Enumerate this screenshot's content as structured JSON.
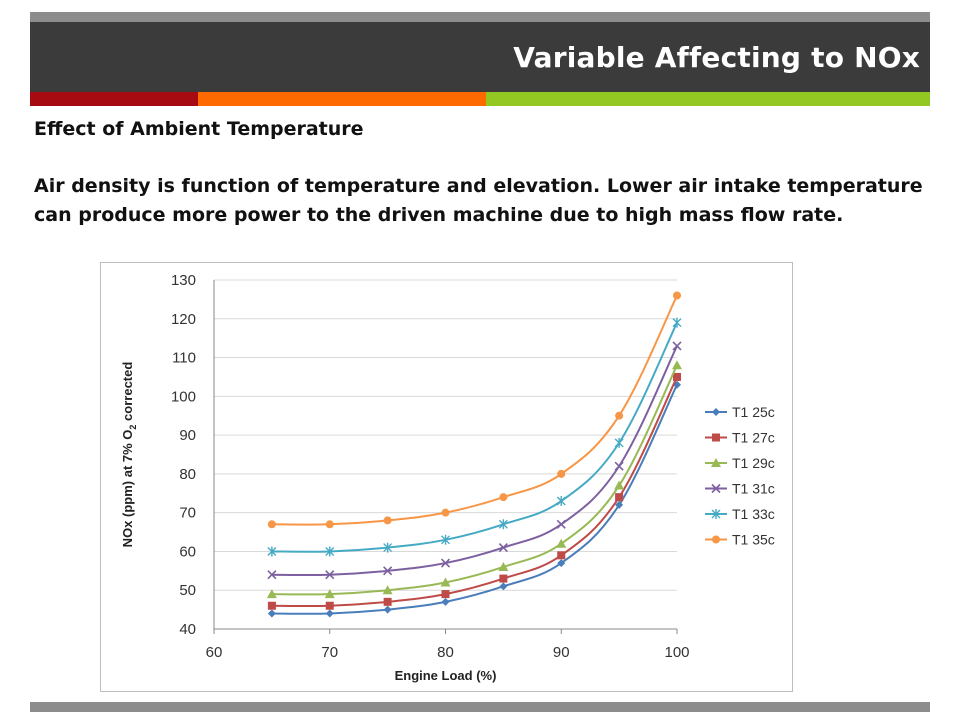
{
  "header": {
    "title": "Variable Affecting to NOx",
    "accent_colors": [
      "#a50b10",
      "#ff6a00",
      "#92c821"
    ]
  },
  "content": {
    "subtitle": "Effect of Ambient Temperature",
    "paragraph": "Air density is function of temperature and elevation. Lower air intake temperature can produce more power to the driven machine due to high mass flow rate."
  },
  "chart_data": {
    "type": "line",
    "xlabel": "Engine Load (%)",
    "ylabel": "NOx (ppm) at 7% O2 corrected",
    "xlim": [
      60,
      100
    ],
    "ylim": [
      40,
      130
    ],
    "xticks": [
      60,
      70,
      80,
      90,
      100
    ],
    "yticks": [
      40,
      50,
      60,
      70,
      80,
      90,
      100,
      110,
      120,
      130
    ],
    "grid": "horizontal",
    "legend_position": "right",
    "x": [
      65,
      70,
      75,
      80,
      85,
      90,
      95,
      100
    ],
    "series": [
      {
        "name": "T1 25c",
        "color": "#4a7ebb",
        "marker": "diamond",
        "values": [
          44,
          44,
          45,
          47,
          51,
          57,
          72,
          103
        ]
      },
      {
        "name": "T1 27c",
        "color": "#be4b48",
        "marker": "square",
        "values": [
          46,
          46,
          47,
          49,
          53,
          59,
          74,
          105
        ]
      },
      {
        "name": "T1 29c",
        "color": "#98b954",
        "marker": "triangle",
        "values": [
          49,
          49,
          50,
          52,
          56,
          62,
          77,
          108
        ]
      },
      {
        "name": "T1 31c",
        "color": "#7d60a0",
        "marker": "x",
        "values": [
          54,
          54,
          55,
          57,
          61,
          67,
          82,
          113
        ]
      },
      {
        "name": "T1 33c",
        "color": "#46aac5",
        "marker": "star",
        "values": [
          60,
          60,
          61,
          63,
          67,
          73,
          88,
          119
        ]
      },
      {
        "name": "T1 35c",
        "color": "#f79646",
        "marker": "circle",
        "values": [
          67,
          67,
          68,
          70,
          74,
          80,
          95,
          126
        ]
      }
    ]
  }
}
